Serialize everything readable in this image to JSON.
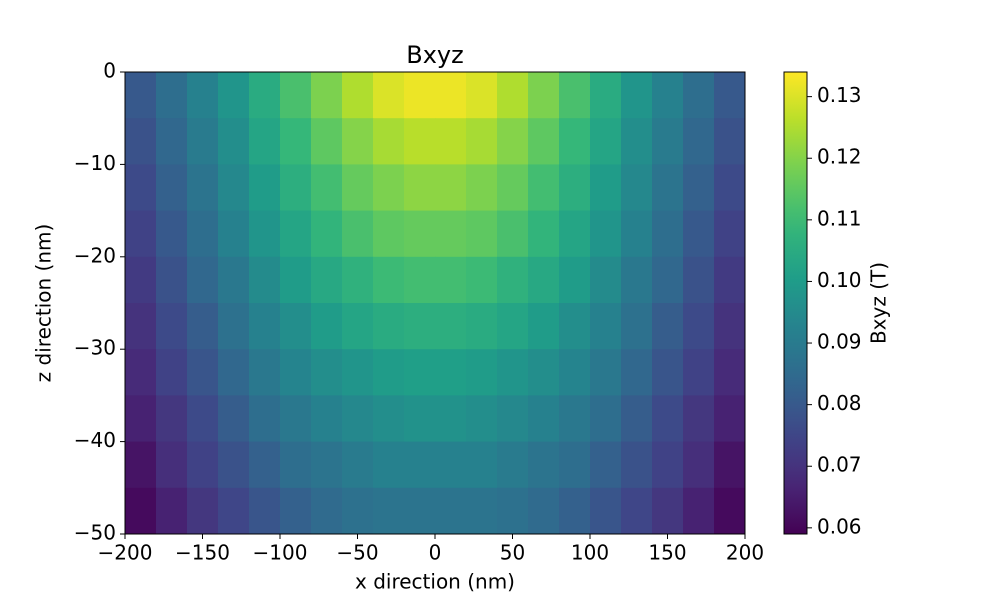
{
  "chart_data": {
    "type": "heatmap",
    "title": "Bxyz",
    "x_label": "x direction (nm)",
    "y_label": "z direction (nm)",
    "colorbar_label": "Bxyz (T)",
    "colormap": "viridis",
    "x": [
      -190,
      -170,
      -150,
      -130,
      -110,
      -90,
      -70,
      -50,
      -30,
      -10,
      10,
      30,
      50,
      70,
      90,
      110,
      130,
      150,
      170,
      190
    ],
    "y": [
      -2.5,
      -7.5,
      -12.5,
      -17.5,
      -22.5,
      -27.5,
      -32.5,
      -37.5,
      -42.5,
      -47.5
    ],
    "values": [
      [
        0.08,
        0.086,
        0.092,
        0.098,
        0.105,
        0.112,
        0.119,
        0.125,
        0.13,
        0.132,
        0.132,
        0.13,
        0.125,
        0.119,
        0.112,
        0.105,
        0.098,
        0.092,
        0.086,
        0.08
      ],
      [
        0.078,
        0.084,
        0.09,
        0.096,
        0.103,
        0.109,
        0.115,
        0.12,
        0.124,
        0.126,
        0.126,
        0.124,
        0.12,
        0.115,
        0.109,
        0.103,
        0.096,
        0.09,
        0.084,
        0.078
      ],
      [
        0.076,
        0.082,
        0.088,
        0.094,
        0.1,
        0.106,
        0.111,
        0.116,
        0.119,
        0.121,
        0.121,
        0.119,
        0.116,
        0.111,
        0.106,
        0.1,
        0.094,
        0.088,
        0.082,
        0.076
      ],
      [
        0.074,
        0.08,
        0.086,
        0.092,
        0.098,
        0.103,
        0.108,
        0.112,
        0.115,
        0.116,
        0.116,
        0.115,
        0.112,
        0.108,
        0.103,
        0.098,
        0.092,
        0.086,
        0.08,
        0.074
      ],
      [
        0.072,
        0.078,
        0.084,
        0.089,
        0.095,
        0.1,
        0.104,
        0.107,
        0.11,
        0.111,
        0.111,
        0.11,
        0.107,
        0.104,
        0.1,
        0.095,
        0.089,
        0.084,
        0.078,
        0.072
      ],
      [
        0.07,
        0.076,
        0.081,
        0.087,
        0.092,
        0.096,
        0.1,
        0.103,
        0.105,
        0.106,
        0.106,
        0.105,
        0.103,
        0.1,
        0.096,
        0.092,
        0.087,
        0.081,
        0.076,
        0.07
      ],
      [
        0.068,
        0.074,
        0.079,
        0.084,
        0.089,
        0.093,
        0.096,
        0.098,
        0.1,
        0.101,
        0.101,
        0.1,
        0.098,
        0.096,
        0.093,
        0.089,
        0.084,
        0.079,
        0.074,
        0.068
      ],
      [
        0.066,
        0.071,
        0.076,
        0.081,
        0.086,
        0.089,
        0.092,
        0.094,
        0.096,
        0.097,
        0.097,
        0.096,
        0.094,
        0.092,
        0.089,
        0.086,
        0.081,
        0.076,
        0.071,
        0.066
      ],
      [
        0.063,
        0.069,
        0.074,
        0.078,
        0.082,
        0.086,
        0.088,
        0.09,
        0.092,
        0.092,
        0.092,
        0.092,
        0.09,
        0.088,
        0.086,
        0.082,
        0.078,
        0.074,
        0.069,
        0.063
      ],
      [
        0.061,
        0.066,
        0.071,
        0.075,
        0.079,
        0.082,
        0.085,
        0.087,
        0.088,
        0.088,
        0.088,
        0.088,
        0.087,
        0.085,
        0.082,
        0.079,
        0.075,
        0.071,
        0.066,
        0.061
      ]
    ],
    "xlim": [
      -200,
      200
    ],
    "ylim": [
      -50,
      0
    ],
    "clim": [
      0.059,
      0.134
    ],
    "xticks": [
      {
        "value": -200,
        "label": "−200"
      },
      {
        "value": -150,
        "label": "−150"
      },
      {
        "value": -100,
        "label": "−100"
      },
      {
        "value": -50,
        "label": "−50"
      },
      0,
      50,
      100,
      150,
      200
    ],
    "yticks": [
      {
        "value": -50,
        "label": "−50"
      },
      {
        "value": -40,
        "label": "−40"
      },
      {
        "value": -30,
        "label": "−30"
      },
      {
        "value": -20,
        "label": "−20"
      },
      {
        "value": -10,
        "label": "−10"
      },
      0
    ],
    "cticks": [
      0.06,
      0.07,
      0.08,
      0.09,
      {
        "value": 0.1,
        "label": "0.10"
      },
      0.11,
      0.12,
      0.13
    ]
  }
}
